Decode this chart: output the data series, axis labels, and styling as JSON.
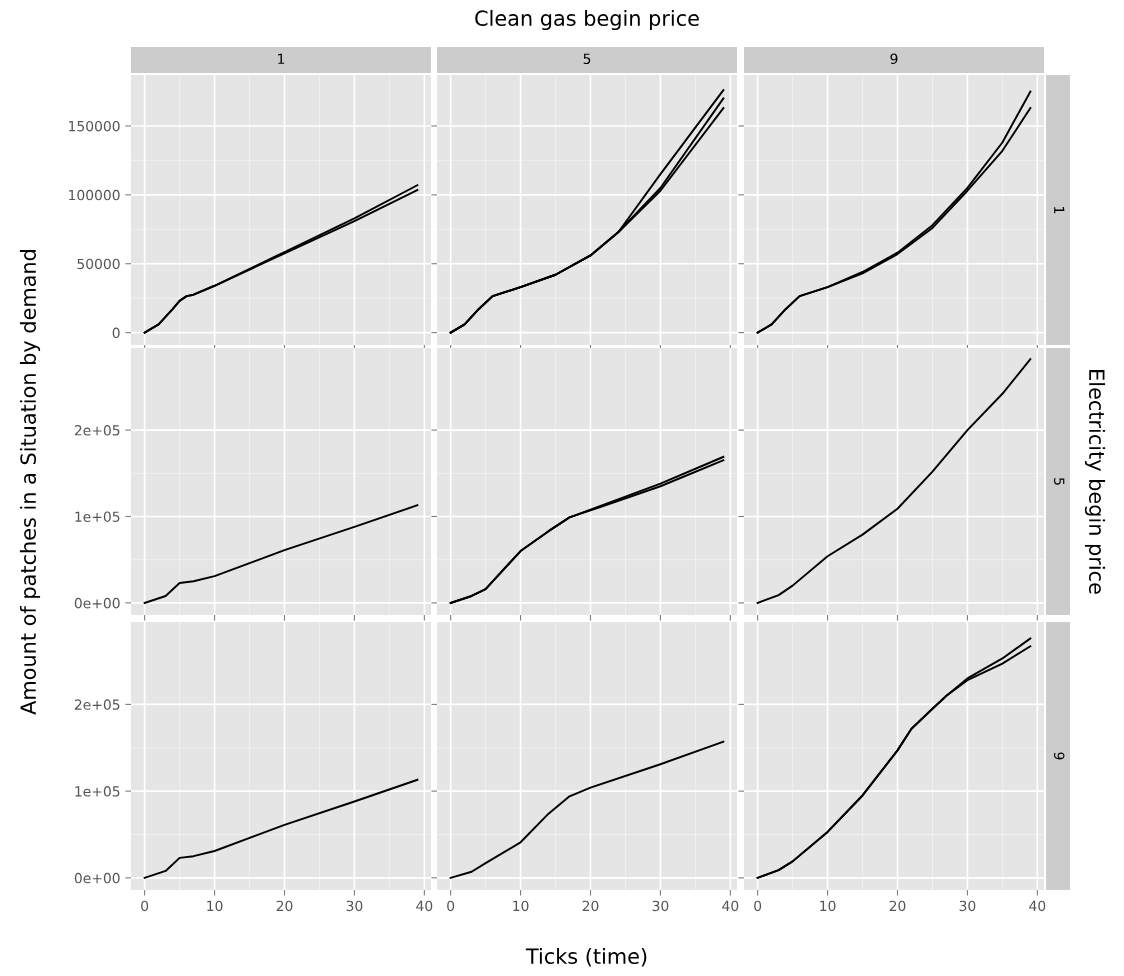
{
  "chart_data": [
    {
      "type": "line",
      "subtitle": "1",
      "xlim": [
        -1.95,
        40.95
      ],
      "ylim": [
        -9000,
        187000
      ],
      "xticks": [
        0,
        10,
        20,
        30,
        40
      ],
      "yticks": [
        0,
        50000,
        100000,
        150000
      ],
      "grid": true,
      "tick_labels": "y",
      "series": [
        {
          "color": "#000000",
          "x": [
            0,
            2,
            4,
            5,
            6,
            7,
            10,
            20,
            30,
            39
          ],
          "values": [
            0,
            6000,
            17000,
            23000,
            26500,
            27500,
            34000,
            58500,
            83000,
            107000
          ]
        },
        {
          "color": "#000000",
          "x": [
            0,
            2,
            4,
            5,
            6,
            7,
            10,
            20,
            30,
            39
          ],
          "values": [
            0,
            6000,
            17000,
            23000,
            26500,
            27500,
            34000,
            57500,
            81000,
            103500
          ]
        }
      ]
    },
    {
      "type": "line",
      "title": "Clean gas begin price",
      "subtitle": "5",
      "xlim": [
        -1.95,
        40.95
      ],
      "ylim": [
        -9000,
        187000
      ],
      "xticks": [
        0,
        10,
        20,
        30,
        40
      ],
      "yticks": [
        0,
        50000,
        100000,
        150000
      ],
      "grid": true,
      "tick_labels": false,
      "series": [
        {
          "color": "#000000",
          "x": [
            0,
            2,
            4,
            6,
            10,
            15,
            20,
            24,
            30,
            39
          ],
          "values": [
            0,
            6000,
            17000,
            26500,
            33000,
            42000,
            56000,
            73000,
            115000,
            176000
          ]
        },
        {
          "color": "#000000",
          "x": [
            0,
            2,
            4,
            6,
            10,
            15,
            20,
            24,
            30,
            39
          ],
          "values": [
            0,
            6000,
            17000,
            26500,
            33000,
            42000,
            56000,
            73000,
            105000,
            170000
          ]
        },
        {
          "color": "#000000",
          "x": [
            0,
            2,
            4,
            6,
            10,
            15,
            20,
            24,
            30,
            39
          ],
          "values": [
            0,
            6000,
            17000,
            26500,
            33000,
            42000,
            56000,
            73000,
            103000,
            163000
          ]
        }
      ]
    },
    {
      "type": "line",
      "subtitle": "9",
      "annotations": [
        "1"
      ],
      "xlim": [
        -1.95,
        40.95
      ],
      "ylim": [
        -9000,
        187000
      ],
      "xticks": [
        0,
        10,
        20,
        30,
        40
      ],
      "yticks": [
        0,
        50000,
        100000,
        150000
      ],
      "grid": true,
      "tick_labels": false,
      "series": [
        {
          "color": "#000000",
          "x": [
            0,
            2,
            4,
            6,
            10,
            15,
            20,
            25,
            30,
            35,
            39
          ],
          "values": [
            0,
            6000,
            17000,
            26500,
            33000,
            44000,
            58000,
            78000,
            105000,
            138000,
            175000
          ]
        },
        {
          "color": "#000000",
          "x": [
            0,
            2,
            4,
            6,
            10,
            15,
            20,
            25,
            30,
            35,
            39
          ],
          "values": [
            0,
            6000,
            17000,
            26500,
            33000,
            43000,
            57000,
            76000,
            103000,
            132000,
            163000
          ]
        }
      ]
    },
    {
      "type": "line",
      "ylabel": "Amount of patches in a Situation by demand",
      "xlim": [
        -1.95,
        40.95
      ],
      "ylim": [
        -14000,
        295000
      ],
      "xticks": [
        0,
        10,
        20,
        30,
        40
      ],
      "yticks": [
        {
          "value": 0,
          "label": "0e+00"
        },
        {
          "value": 100000,
          "label": "1e+05"
        },
        {
          "value": 200000,
          "label": "2e+05"
        }
      ],
      "grid": true,
      "tick_labels": "y",
      "series": [
        {
          "color": "#000000",
          "x": [
            0,
            3,
            5,
            7,
            10,
            20,
            30,
            39
          ],
          "values": [
            0,
            8000,
            23000,
            25000,
            31000,
            61000,
            88000,
            113000
          ]
        }
      ]
    },
    {
      "type": "line",
      "xlim": [
        -1.95,
        40.95
      ],
      "ylim": [
        -14000,
        295000
      ],
      "xticks": [
        0,
        10,
        20,
        30,
        40
      ],
      "yticks": [
        {
          "value": 0,
          "label": null
        },
        {
          "value": 100000,
          "label": null
        },
        {
          "value": 200000,
          "label": null
        }
      ],
      "grid": true,
      "tick_labels": false,
      "series": [
        {
          "color": "#000000",
          "x": [
            0,
            3,
            5,
            10,
            14,
            17,
            20,
            30,
            39
          ],
          "values": [
            0,
            8000,
            16000,
            60000,
            83000,
            99000,
            108000,
            138000,
            169000
          ]
        },
        {
          "color": "#000000",
          "x": [
            0,
            3,
            5,
            10,
            14,
            17,
            20,
            30,
            39
          ],
          "values": [
            0,
            8000,
            16000,
            60000,
            83000,
            99000,
            107000,
            135000,
            165000
          ]
        }
      ]
    },
    {
      "type": "line",
      "y2label": "Electricity begin price",
      "annotations": [
        "5"
      ],
      "xlim": [
        -1.95,
        40.95
      ],
      "ylim": [
        -14000,
        295000
      ],
      "xticks": [
        0,
        10,
        20,
        30,
        40
      ],
      "yticks": [
        {
          "value": 0,
          "label": null
        },
        {
          "value": 100000,
          "label": null
        },
        {
          "value": 200000,
          "label": null
        }
      ],
      "grid": true,
      "tick_labels": false,
      "series": [
        {
          "color": "#000000",
          "x": [
            0,
            3,
            5,
            10,
            15,
            20,
            25,
            30,
            35,
            39
          ],
          "values": [
            0,
            9000,
            20000,
            54000,
            79000,
            109000,
            152000,
            200000,
            242000,
            282000
          ]
        }
      ]
    },
    {
      "type": "line",
      "xlim": [
        -1.95,
        40.95
      ],
      "ylim": [
        -14000,
        295000
      ],
      "xticks": [
        0,
        10,
        20,
        30,
        40
      ],
      "yticks": [
        {
          "value": 0,
          "label": "0e+00"
        },
        {
          "value": 100000,
          "label": "1e+05"
        },
        {
          "value": 200000,
          "label": "2e+05"
        }
      ],
      "grid": true,
      "series": [
        {
          "color": "#000000",
          "x": [
            0,
            3,
            5,
            7,
            10,
            20,
            30,
            39
          ],
          "values": [
            0,
            8000,
            23000,
            25000,
            31000,
            61000,
            88000,
            113000
          ]
        }
      ]
    },
    {
      "type": "line",
      "xlabel": "Ticks (time)",
      "xlim": [
        -1.95,
        40.95
      ],
      "ylim": [
        -14000,
        295000
      ],
      "xticks": [
        0,
        10,
        20,
        30,
        40
      ],
      "yticks": [
        {
          "value": 0,
          "label": null
        },
        {
          "value": 100000,
          "label": null
        },
        {
          "value": 200000,
          "label": null
        }
      ],
      "grid": true,
      "tick_labels": "x",
      "series": [
        {
          "color": "#000000",
          "x": [
            0,
            3,
            5,
            10,
            14,
            17,
            20,
            30,
            39
          ],
          "values": [
            0,
            7000,
            17000,
            41000,
            74000,
            94000,
            104000,
            131000,
            157000
          ]
        }
      ]
    },
    {
      "type": "line",
      "annotations": [
        "9"
      ],
      "xlim": [
        -1.95,
        40.95
      ],
      "ylim": [
        -14000,
        295000
      ],
      "xticks": [
        0,
        10,
        20,
        30,
        40
      ],
      "yticks": [
        {
          "value": 0,
          "label": null
        },
        {
          "value": 100000,
          "label": null
        },
        {
          "value": 200000,
          "label": null
        }
      ],
      "grid": true,
      "tick_labels": "x",
      "series": [
        {
          "color": "#000000",
          "x": [
            0,
            3,
            5,
            10,
            15,
            20,
            22,
            25,
            27,
            30,
            35,
            39
          ],
          "values": [
            0,
            9000,
            19000,
            53000,
            95000,
            147000,
            172000,
            195000,
            210000,
            230000,
            253000,
            276000
          ]
        },
        {
          "color": "#000000",
          "x": [
            0,
            3,
            5,
            10,
            15,
            20,
            22,
            25,
            27,
            30,
            35,
            39
          ],
          "values": [
            0,
            9000,
            19000,
            53000,
            95000,
            147000,
            172000,
            195000,
            210000,
            228000,
            247000,
            267000
          ]
        }
      ]
    }
  ]
}
